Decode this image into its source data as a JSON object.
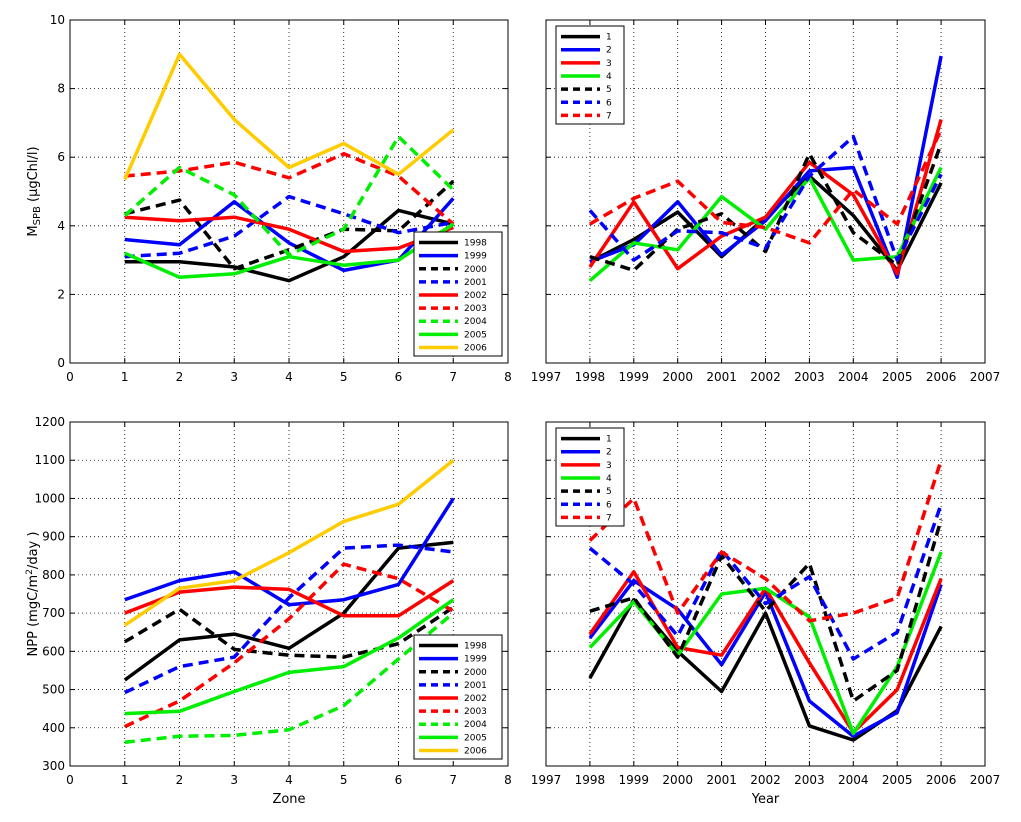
{
  "chart_data": [
    {
      "type": "line",
      "id": "tl",
      "xlim": [
        0,
        8
      ],
      "ylim": [
        0,
        10
      ],
      "xticks": [
        "0",
        "1",
        "2",
        "3",
        "4",
        "5",
        "6",
        "7",
        "8"
      ],
      "yticks": [
        "0",
        "2",
        "4",
        "6",
        "8",
        "10"
      ],
      "show_xticklabels": true,
      "show_yticklabels": true,
      "ylabel_main": "M",
      "ylabel_sub": "SPB",
      "ylabel_rest": " (μgChl/l)",
      "xlabel": "",
      "legend_position": "bottom-right",
      "grid": true,
      "x": [
        1,
        2,
        3,
        4,
        5,
        6,
        7
      ],
      "series": [
        {
          "name": "1998",
          "color": "#000000",
          "dash": false,
          "values": [
            2.95,
            2.95,
            2.8,
            2.4,
            3.1,
            4.45,
            4.05
          ]
        },
        {
          "name": "1999",
          "color": "#0000ff",
          "dash": false,
          "values": [
            3.6,
            3.45,
            4.7,
            3.5,
            2.7,
            3.0,
            4.8
          ]
        },
        {
          "name": "2000",
          "color": "#000000",
          "dash": true,
          "values": [
            4.35,
            4.75,
            2.75,
            3.3,
            3.9,
            3.85,
            5.3
          ]
        },
        {
          "name": "2001",
          "color": "#0000ff",
          "dash": true,
          "values": [
            3.1,
            3.2,
            3.7,
            4.85,
            4.35,
            3.8,
            4.1
          ]
        },
        {
          "name": "2002",
          "color": "#ff0000",
          "dash": false,
          "values": [
            4.25,
            4.15,
            4.25,
            3.9,
            3.25,
            3.35,
            3.95
          ]
        },
        {
          "name": "2003",
          "color": "#ff0000",
          "dash": true,
          "values": [
            5.45,
            5.6,
            5.85,
            5.4,
            6.1,
            5.45,
            4.05
          ]
        },
        {
          "name": "2004",
          "color": "#00ee00",
          "dash": true,
          "values": [
            4.3,
            5.7,
            4.9,
            3.15,
            3.9,
            6.6,
            5.05
          ]
        },
        {
          "name": "2005",
          "color": "#00ee00",
          "dash": false,
          "values": [
            3.2,
            2.5,
            2.6,
            3.1,
            2.85,
            3.0,
            4.05
          ]
        },
        {
          "name": "2006",
          "color": "#ffcc00",
          "dash": false,
          "values": [
            5.35,
            9.0,
            7.1,
            5.7,
            6.4,
            5.5,
            6.8
          ]
        }
      ]
    },
    {
      "type": "line",
      "id": "tr",
      "xlim": [
        1997,
        2007
      ],
      "ylim": [
        0,
        10
      ],
      "xticks": [
        "1997",
        "1998",
        "1999",
        "2000",
        "2001",
        "2002",
        "2003",
        "2004",
        "2005",
        "2006",
        "2007"
      ],
      "yticks": [
        "0",
        "2",
        "4",
        "6",
        "8",
        "10"
      ],
      "show_xticklabels": true,
      "show_yticklabels": false,
      "xlabel": "",
      "legend_position": "top-left",
      "grid": true,
      "x": [
        1998,
        1999,
        2000,
        2001,
        2002,
        2003,
        2004,
        2005,
        2006
      ],
      "series": [
        {
          "name": "1",
          "color": "#000000",
          "dash": false,
          "values": [
            2.95,
            3.6,
            4.4,
            3.1,
            4.25,
            5.45,
            4.3,
            2.7,
            5.25
          ]
        },
        {
          "name": "2",
          "color": "#0000ff",
          "dash": false,
          "values": [
            2.95,
            3.45,
            4.7,
            3.15,
            4.15,
            5.6,
            5.7,
            2.5,
            8.95
          ]
        },
        {
          "name": "3",
          "color": "#ff0000",
          "dash": false,
          "values": [
            2.8,
            4.7,
            2.75,
            3.7,
            4.25,
            5.85,
            4.9,
            2.6,
            7.1
          ]
        },
        {
          "name": "4",
          "color": "#00ee00",
          "dash": false,
          "values": [
            2.4,
            3.5,
            3.3,
            4.85,
            3.9,
            5.4,
            3.0,
            3.1,
            5.7
          ]
        },
        {
          "name": "5",
          "color": "#000000",
          "dash": true,
          "values": [
            3.1,
            2.7,
            3.9,
            4.35,
            3.25,
            6.1,
            3.8,
            2.85,
            6.4
          ]
        },
        {
          "name": "6",
          "color": "#0000ff",
          "dash": true,
          "values": [
            4.45,
            3.0,
            3.85,
            3.8,
            3.35,
            5.45,
            6.6,
            3.0,
            5.5
          ]
        },
        {
          "name": "7",
          "color": "#ff0000",
          "dash": true,
          "values": [
            4.05,
            4.8,
            5.3,
            4.1,
            3.95,
            3.5,
            5.05,
            4.05,
            6.8
          ]
        }
      ]
    },
    {
      "type": "line",
      "id": "bl",
      "xlim": [
        0,
        8
      ],
      "ylim": [
        300,
        1200
      ],
      "xticks": [
        "0",
        "1",
        "2",
        "3",
        "4",
        "5",
        "6",
        "7",
        "8"
      ],
      "yticks": [
        "300",
        "400",
        "500",
        "600",
        "700",
        "800",
        "900",
        "1000",
        "1100",
        "1200"
      ],
      "show_xticklabels": true,
      "show_yticklabels": true,
      "ylabel_main": "NPP  (mgC/m",
      "ylabel_sup": "2",
      "ylabel_rest": "/day  )",
      "xlabel": "Zone",
      "legend_position": "bottom-right",
      "grid": true,
      "x": [
        1,
        2,
        3,
        4,
        5,
        6,
        7
      ],
      "series": [
        {
          "name": "1998",
          "color": "#000000",
          "dash": false,
          "values": [
            525,
            630,
            645,
            608,
            700,
            870,
            885
          ]
        },
        {
          "name": "1999",
          "color": "#0000ff",
          "dash": false,
          "values": [
            735,
            785,
            808,
            722,
            735,
            775,
            1000
          ]
        },
        {
          "name": "2000",
          "color": "#000000",
          "dash": true,
          "values": [
            625,
            710,
            605,
            590,
            585,
            620,
            715
          ]
        },
        {
          "name": "2001",
          "color": "#0000ff",
          "dash": true,
          "values": [
            492,
            560,
            585,
            740,
            870,
            878,
            860
          ]
        },
        {
          "name": "2002",
          "color": "#ff0000",
          "dash": false,
          "values": [
            700,
            755,
            768,
            762,
            693,
            693,
            785
          ]
        },
        {
          "name": "2003",
          "color": "#ff0000",
          "dash": true,
          "values": [
            403,
            470,
            570,
            685,
            828,
            790,
            705
          ]
        },
        {
          "name": "2004",
          "color": "#00ee00",
          "dash": true,
          "values": [
            362,
            378,
            380,
            395,
            458,
            580,
            700
          ]
        },
        {
          "name": "2005",
          "color": "#00ee00",
          "dash": false,
          "values": [
            437,
            443,
            495,
            545,
            560,
            635,
            735
          ]
        },
        {
          "name": "2006",
          "color": "#ffcc00",
          "dash": false,
          "values": [
            668,
            765,
            785,
            858,
            940,
            985,
            1100
          ]
        }
      ]
    },
    {
      "type": "line",
      "id": "br",
      "xlim": [
        1997,
        2007
      ],
      "ylim": [
        300,
        1200
      ],
      "xticks": [
        "1997",
        "1998",
        "1999",
        "2000",
        "2001",
        "2002",
        "2003",
        "2004",
        "2005",
        "2006",
        "2007"
      ],
      "yticks": [
        "300",
        "400",
        "500",
        "600",
        "700",
        "800",
        "900",
        "1000",
        "1100",
        "1200"
      ],
      "show_xticklabels": true,
      "show_yticklabels": false,
      "xlabel": "Year",
      "legend_position": "top-left",
      "grid": true,
      "x": [
        1998,
        1999,
        2000,
        2001,
        2002,
        2003,
        2004,
        2005,
        2006
      ],
      "series": [
        {
          "name": "1",
          "color": "#000000",
          "dash": false,
          "values": [
            530,
            735,
            600,
            495,
            700,
            405,
            368,
            445,
            665
          ]
        },
        {
          "name": "2",
          "color": "#0000ff",
          "dash": false,
          "values": [
            635,
            785,
            710,
            565,
            755,
            470,
            378,
            440,
            775
          ]
        },
        {
          "name": "3",
          "color": "#ff0000",
          "dash": false,
          "values": [
            645,
            808,
            610,
            590,
            765,
            570,
            388,
            500,
            790
          ]
        },
        {
          "name": "4",
          "color": "#00ee00",
          "dash": false,
          "values": [
            610,
            730,
            590,
            750,
            765,
            690,
            385,
            560,
            860
          ]
        },
        {
          "name": "5",
          "color": "#000000",
          "dash": true,
          "values": [
            705,
            740,
            585,
            850,
            705,
            830,
            470,
            550,
            945
          ]
        },
        {
          "name": "6",
          "color": "#0000ff",
          "dash": true,
          "values": [
            870,
            775,
            640,
            865,
            725,
            795,
            580,
            650,
            985
          ]
        },
        {
          "name": "7",
          "color": "#ff0000",
          "dash": true,
          "values": [
            890,
            1000,
            700,
            860,
            790,
            680,
            700,
            740,
            1100
          ]
        }
      ]
    }
  ]
}
